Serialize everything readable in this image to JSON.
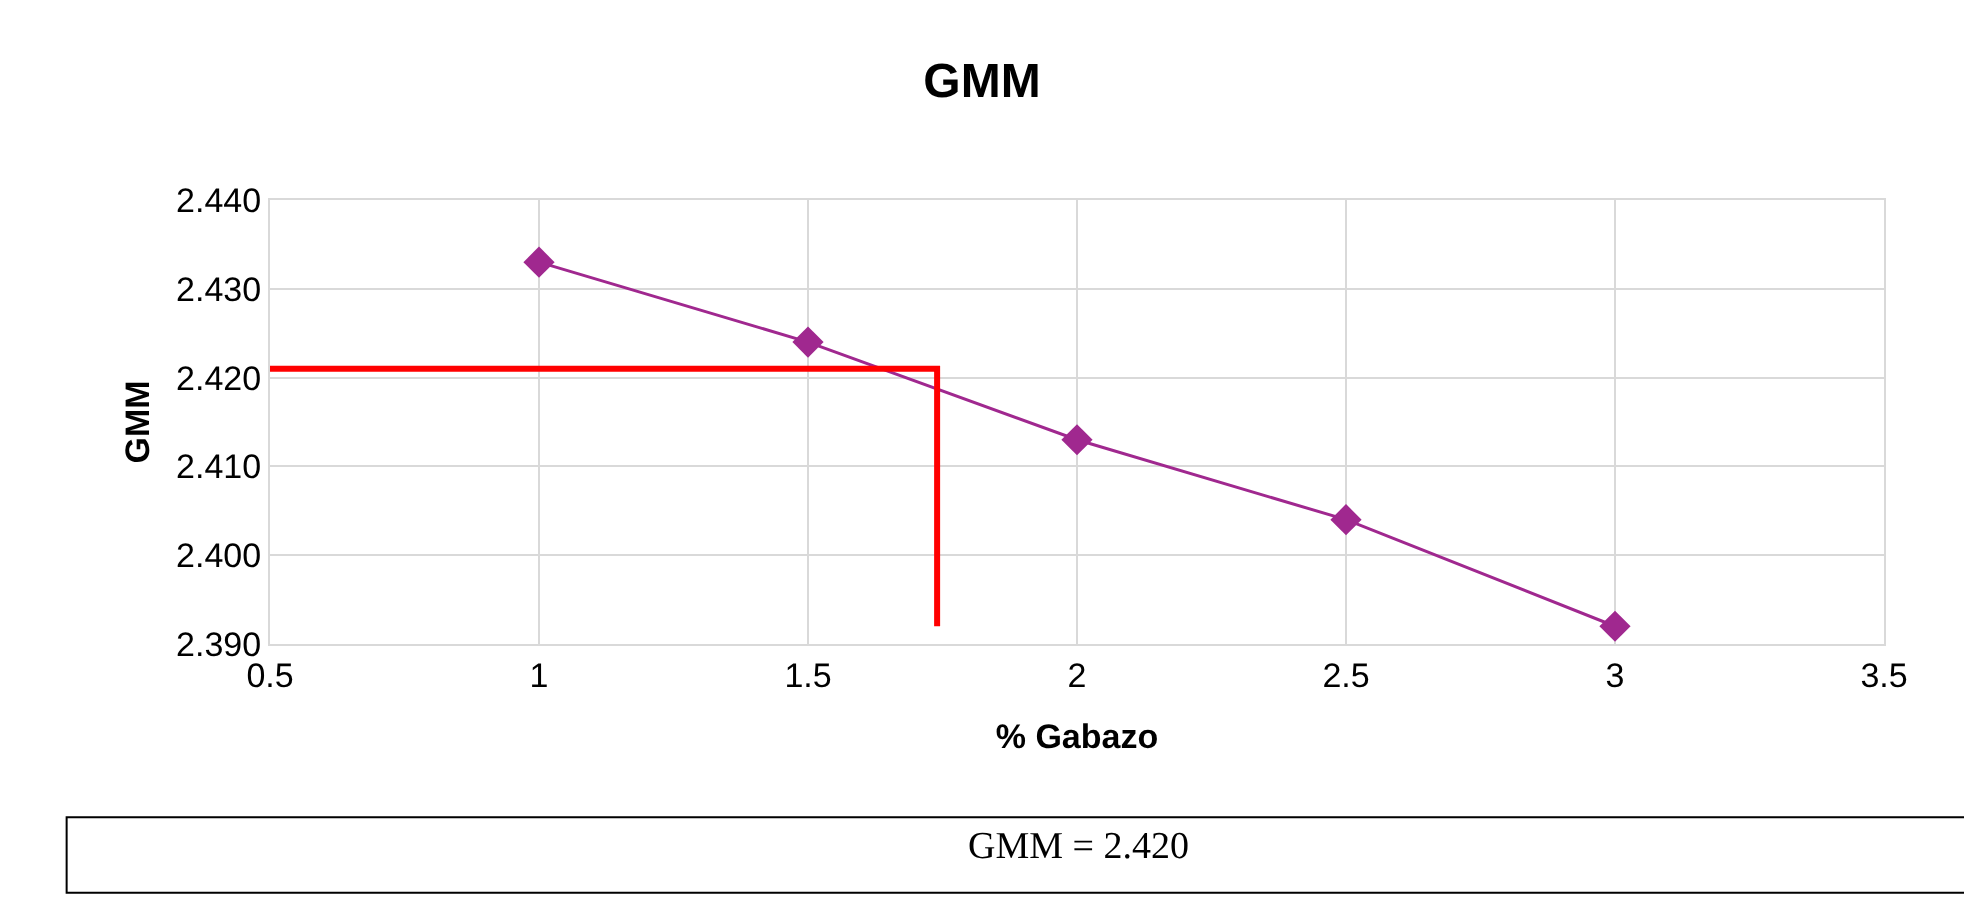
{
  "chart_data": {
    "type": "line",
    "title": "GMM",
    "xlabel": "% Gabazo",
    "ylabel": "GMM",
    "series": [
      {
        "color": "#a0288f",
        "marker": "diamond",
        "x": [
          1,
          1.5,
          2,
          2.5,
          3
        ],
        "values": [
          2.433,
          2.424,
          2.413,
          2.404,
          2.392
        ]
      },
      {
        "color": "#ff0000",
        "marker": "none",
        "x": [
          0.5,
          1.74,
          1.74
        ],
        "values": [
          2.421,
          2.421,
          2.392
        ]
      }
    ],
    "xlim": [
      0.5,
      3.5
    ],
    "xticks": [
      0.5,
      1,
      1.5,
      2,
      2.5,
      3,
      3.5
    ],
    "ylim": [
      2.39,
      2.44
    ],
    "yticks": [
      {
        "value": 2.39,
        "label": "2.390"
      },
      {
        "value": 2.4,
        "label": "2.400"
      },
      {
        "value": 2.41,
        "label": "2.410"
      },
      {
        "value": 2.42,
        "label": "2.420"
      },
      {
        "value": 2.43,
        "label": "2.430"
      },
      {
        "value": 2.44,
        "label": "2.440"
      }
    ],
    "grid": true,
    "annotations": [
      "GMM = 2.420"
    ]
  }
}
